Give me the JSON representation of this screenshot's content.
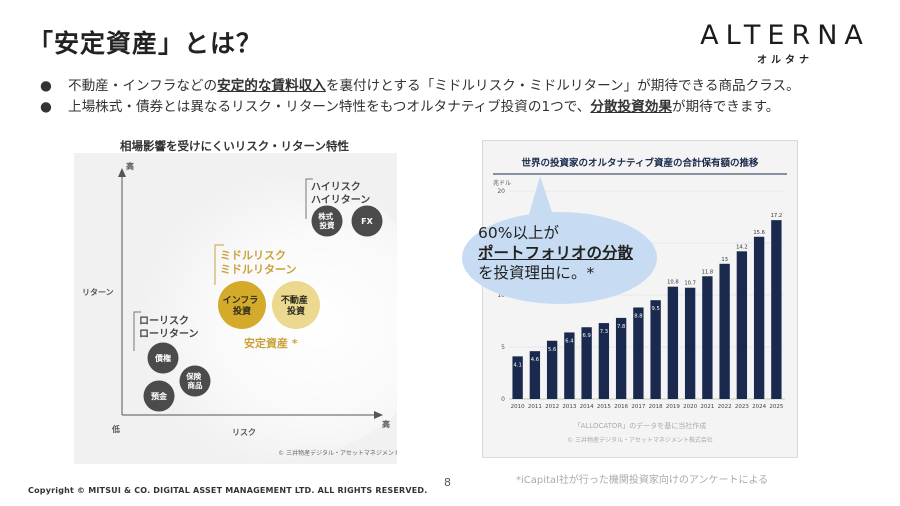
{
  "header": {
    "title": "「安定資産」とは？",
    "logo": "ALTERNA",
    "logo_sub": "オルタナ"
  },
  "bullets": [
    {
      "dot": "●",
      "parts": [
        "不動産・インフラなどの",
        "安定的な賃料収入",
        "を裏付けとする「ミドルリスク・ミドルリターン」が期待できる商品クラス。"
      ]
    },
    {
      "dot": "●",
      "parts": [
        "上場株式・債券とは異なるリスク・リターン特性をもつオルタナティブ投資の1つで、",
        "分散投資効果",
        "が期待できます。"
      ]
    }
  ],
  "risk_diagram": {
    "title": "相場影響を受けにくいリスク・リターン特性",
    "y_axis_label": "リターン",
    "x_axis_label": "リスク",
    "high_label": "高",
    "low_label": "低",
    "x_high_label": "高",
    "groups": {
      "high": "ハイリスク\nハイリターン",
      "middle": "ミドルリスク\nミドルリターン",
      "low": "ローリスク\nローリターン",
      "stable": "安定資産 *"
    },
    "circles": {
      "stocks": "株式\n投資",
      "fx": "FX",
      "infra": "インフラ\n投資",
      "real_estate": "不動産\n投資",
      "bonds": "債権",
      "insurance": "保険\n商品",
      "deposit": "預金"
    },
    "credit": "© 三井物産デジタル・アセットマネジメント"
  },
  "chart_data": {
    "type": "bar",
    "title": "世界の投資家のオルタナティブ資産の合計保有額の推移",
    "ylabel": "兆ドル",
    "categories": [
      "2010",
      "2011",
      "2012",
      "2013",
      "2014",
      "2015",
      "2016",
      "2017",
      "2018",
      "2019",
      "2020",
      "2021",
      "2022",
      "2023",
      "2024",
      "2025"
    ],
    "values": [
      4.1,
      4.6,
      5.6,
      6.4,
      6.9,
      7.3,
      7.8,
      8.8,
      9.5,
      10.8,
      10.7,
      11.8,
      13,
      14.2,
      15.6,
      17.2
    ],
    "yticks": [
      0,
      5,
      10,
      15,
      20
    ],
    "ylim": [
      0,
      20
    ],
    "bar_color": "#1a2a4e",
    "source": "「ALLOCATOR」のデータを基に当社作成",
    "credit": "© 三井物産デジタル・アセットマネジメント株式会社"
  },
  "callout": {
    "line1": "60%以上が",
    "line2": "ポートフォリオの分散",
    "line3": "を投資理由に。*"
  },
  "footer": {
    "copyright": "Copyright © MITSUI & CO. DIGITAL ASSET MANAGEMENT LTD. ALL RIGHTS RESERVED.",
    "page": "8",
    "note": "*iCapital社が行った機関投資家向けのアンケートによる"
  },
  "colors": {
    "gold": "#d3aa2a",
    "gold_light": "#ecd98f",
    "dark_circle": "#4b4b4b",
    "navy": "#1a2a4e",
    "bubble": "#c7dcf3"
  }
}
